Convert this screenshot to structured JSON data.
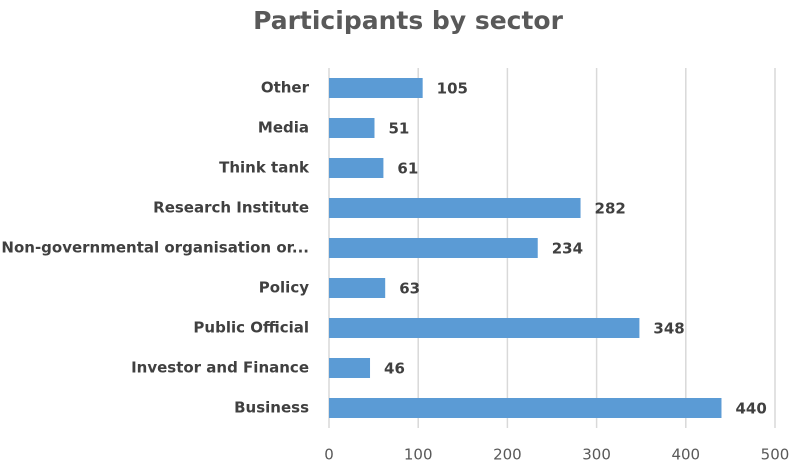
{
  "chart_data": {
    "type": "hbar",
    "title": "Participants by sector",
    "categories": [
      "Other",
      "Media",
      "Think tank",
      "Research Institute",
      "Non-governmental organisation or...",
      "Policy",
      "Public Official",
      "Investor and Finance",
      "Business"
    ],
    "values": [
      105,
      51,
      61,
      282,
      234,
      63,
      348,
      46,
      440
    ],
    "color": "#5b9bd5",
    "xlim": [
      0,
      500
    ],
    "xticks": [
      0,
      100,
      200,
      300,
      400,
      500
    ],
    "grid": true
  }
}
